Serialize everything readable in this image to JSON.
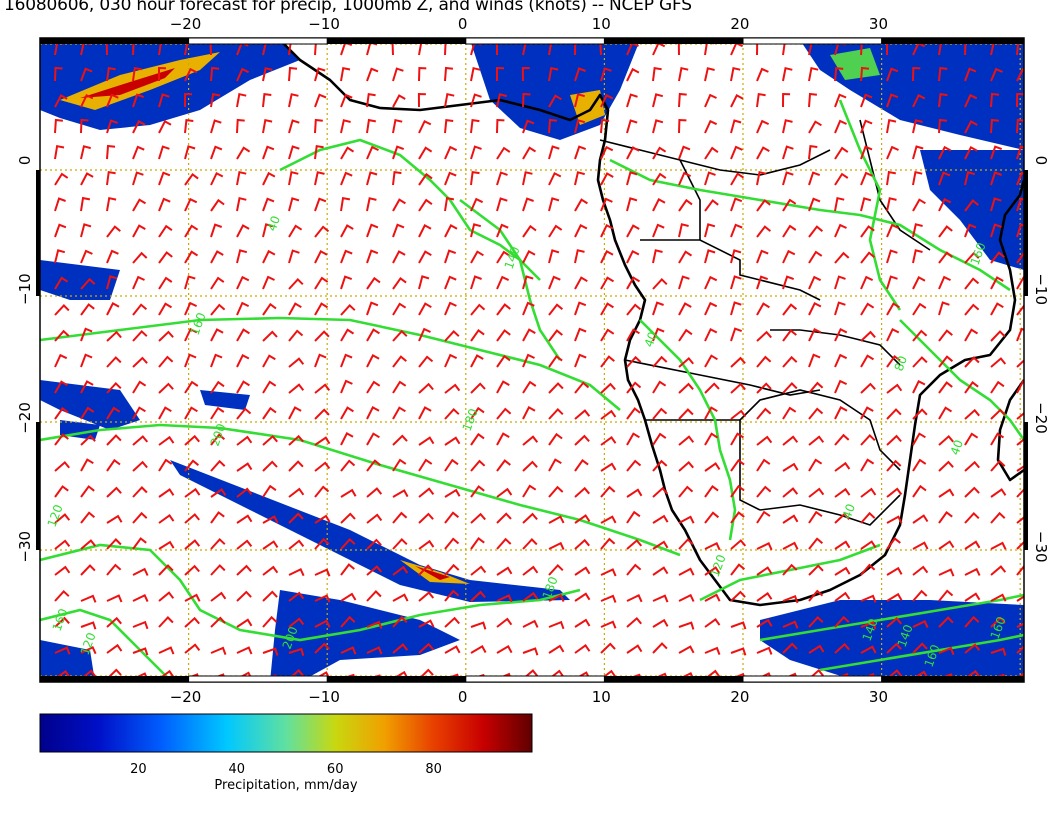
{
  "title": "16080606, 030 hour forecast for precip, 1000mb Z, and winds (knots) -- NCEP GFS",
  "axes": {
    "lon_ticks": [
      {
        "value": -20,
        "label": "−20"
      },
      {
        "value": -10,
        "label": "−10"
      },
      {
        "value": 0,
        "label": "0"
      },
      {
        "value": 10,
        "label": "10"
      },
      {
        "value": 20,
        "label": "20"
      },
      {
        "value": 30,
        "label": "30"
      }
    ],
    "lat_ticks": [
      {
        "value": 0,
        "label": "0"
      },
      {
        "value": -10,
        "label": "−10"
      },
      {
        "value": -20,
        "label": "−20"
      },
      {
        "value": -30,
        "label": "−30"
      }
    ],
    "lon_range": [
      -30.5,
      40.5
    ],
    "lat_range": [
      -40.5,
      9.5
    ],
    "grid": true
  },
  "colorbar": {
    "label": "Precipitation, mm/day",
    "ticks": [
      {
        "value": 20,
        "label": "20"
      },
      {
        "value": 40,
        "label": "40"
      },
      {
        "value": 60,
        "label": "60"
      },
      {
        "value": 80,
        "label": "80"
      }
    ],
    "range": [
      0,
      100
    ]
  },
  "contour_labels": [
    "40",
    "160",
    "140",
    "200",
    "120",
    "180",
    "160",
    "120",
    "140",
    "200",
    "180",
    "160",
    "160",
    "140",
    "120",
    "160",
    "40",
    "80",
    "40",
    "40"
  ],
  "colors": {
    "contour": "#33dd33",
    "wind_barbs": "#ee1111",
    "coastline": "#000000",
    "grid": "#ccaa00"
  }
}
